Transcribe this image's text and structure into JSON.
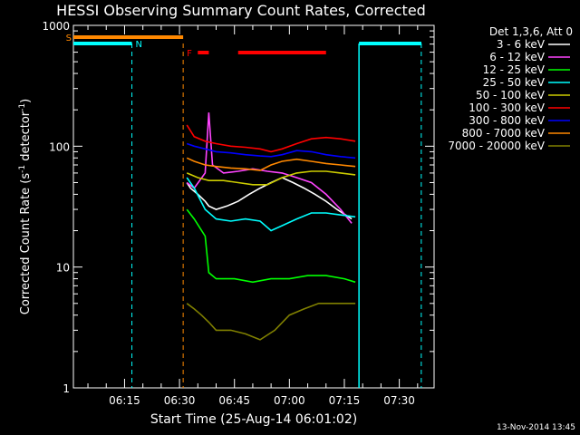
{
  "chart_data": {
    "type": "line",
    "title": "HESSI Observing Summary Count Rates, Corrected",
    "xlabel": "Start Time (25-Aug-14 06:01:02)",
    "ylabel_main": "Corrected Count Rate (s",
    "ylabel_sup1": "-1",
    "ylabel_mid": " detector",
    "ylabel_sup2": "-1",
    "ylabel_end": ")",
    "yscale": "log",
    "ylim": [
      1,
      1000
    ],
    "xlim": [
      "06:01:02",
      "07:39:30"
    ],
    "grid": false,
    "legend_placement": "right",
    "x_ticks": [
      "06:15",
      "06:30",
      "06:45",
      "07:00",
      "07:15",
      "07:30"
    ],
    "y_ticks": [
      "1",
      "10",
      "100",
      "1000"
    ],
    "legend_title": "Det 1,3,6, Att 0",
    "series": [
      {
        "name": "3 - 6 keV",
        "color": "#ffffff",
        "x": [
          "06:32:00",
          "06:33:00",
          "06:35:00",
          "06:37:00",
          "06:38:00",
          "06:40:00",
          "06:43:00",
          "06:46:00",
          "06:49:00",
          "06:52:00",
          "06:55:00",
          "06:58:00",
          "07:01:00",
          "07:04:00",
          "07:07:00",
          "07:10:00",
          "07:13:00",
          "07:17:00"
        ],
        "y": [
          50,
          45,
          40,
          35,
          32,
          30,
          32,
          35,
          40,
          45,
          50,
          55,
          50,
          45,
          40,
          35,
          30,
          25
        ]
      },
      {
        "name": "6 - 12 keV",
        "color": "#ff44ff",
        "x": [
          "06:32:00",
          "06:34:00",
          "06:37:00",
          "06:38:00",
          "06:39:00",
          "06:42:00",
          "06:46:00",
          "06:50:00",
          "06:54:00",
          "06:58:00",
          "07:02:00",
          "07:06:00",
          "07:10:00",
          "07:14:00",
          "07:17:00"
        ],
        "y": [
          50,
          45,
          60,
          190,
          70,
          60,
          62,
          65,
          62,
          60,
          55,
          50,
          40,
          30,
          23
        ]
      },
      {
        "name": "12 - 25 keV",
        "color": "#00ff00",
        "x": [
          "06:32:00",
          "06:34:00",
          "06:37:00",
          "06:38:00",
          "06:40:00",
          "06:45:00",
          "06:50:00",
          "06:55:00",
          "07:00:00",
          "07:05:00",
          "07:10:00",
          "07:15:00",
          "07:18:00"
        ],
        "y": [
          30,
          25,
          18,
          9,
          8,
          8,
          7.5,
          8,
          8,
          8.5,
          8.5,
          8,
          7.5
        ]
      },
      {
        "name": "25 - 50 keV",
        "color": "#00ffff",
        "x": [
          "06:32:00",
          "06:34:00",
          "06:37:00",
          "06:40:00",
          "06:44:00",
          "06:48:00",
          "06:52:00",
          "06:55:00",
          "06:58:00",
          "07:02:00",
          "07:06:00",
          "07:10:00",
          "07:14:00",
          "07:18:00"
        ],
        "y": [
          55,
          45,
          30,
          25,
          24,
          25,
          24,
          20,
          22,
          25,
          28,
          28,
          27,
          26
        ]
      },
      {
        "name": "50 - 100 keV",
        "color": "#cccc00",
        "x": [
          "06:32:00",
          "06:35:00",
          "06:38:00",
          "06:42:00",
          "06:46:00",
          "06:50:00",
          "06:54:00",
          "06:58:00",
          "07:02:00",
          "07:06:00",
          "07:10:00",
          "07:14:00",
          "07:18:00"
        ],
        "y": [
          60,
          55,
          52,
          52,
          50,
          48,
          48,
          55,
          60,
          62,
          62,
          60,
          58
        ]
      },
      {
        "name": "100 - 300 keV",
        "color": "#ff0000",
        "x": [
          "06:32:00",
          "06:34:00",
          "06:37:00",
          "06:40:00",
          "06:44:00",
          "06:48:00",
          "06:52:00",
          "06:55:00",
          "06:58:00",
          "07:02:00",
          "07:06:00",
          "07:10:00",
          "07:14:00",
          "07:18:00"
        ],
        "y": [
          150,
          120,
          110,
          105,
          100,
          98,
          95,
          90,
          95,
          105,
          115,
          118,
          115,
          110
        ]
      },
      {
        "name": "300 - 800 keV",
        "color": "#0000ff",
        "x": [
          "06:32:00",
          "06:34:00",
          "06:37:00",
          "06:40:00",
          "06:44:00",
          "06:48:00",
          "06:52:00",
          "06:55:00",
          "06:58:00",
          "07:02:00",
          "07:06:00",
          "07:10:00",
          "07:14:00",
          "07:18:00"
        ],
        "y": [
          105,
          100,
          95,
          90,
          88,
          85,
          83,
          82,
          85,
          92,
          90,
          85,
          82,
          80
        ]
      },
      {
        "name": "800 - 7000 keV",
        "color": "#ff8800",
        "x": [
          "06:32:00",
          "06:34:00",
          "06:37:00",
          "06:40:00",
          "06:44:00",
          "06:48:00",
          "06:52:00",
          "06:55:00",
          "06:58:00",
          "07:02:00",
          "07:06:00",
          "07:10:00",
          "07:14:00",
          "07:18:00"
        ],
        "y": [
          80,
          75,
          70,
          68,
          66,
          65,
          63,
          70,
          75,
          78,
          75,
          72,
          70,
          68
        ]
      },
      {
        "name": "7000 - 20000 keV",
        "color": "#808000",
        "x": [
          "06:32:00",
          "06:34:00",
          "06:36:00",
          "06:38:00",
          "06:40:00",
          "06:44:00",
          "06:48:00",
          "06:52:00",
          "06:56:00",
          "07:00:00",
          "07:04:00",
          "07:08:00",
          "07:12:00",
          "07:16:00",
          "07:18:00"
        ],
        "y": [
          5,
          4.5,
          4,
          3.5,
          3,
          3,
          2.8,
          2.5,
          3,
          4,
          4.5,
          5,
          5,
          5,
          5
        ]
      }
    ],
    "annotations": {
      "s_label": "S",
      "n_label": "N",
      "f_label": "F",
      "s_color": "#ff8800",
      "n_color": "#00ffff",
      "f_color": "#ff0000"
    },
    "footer_date": "13-Nov-2014 13:45"
  }
}
